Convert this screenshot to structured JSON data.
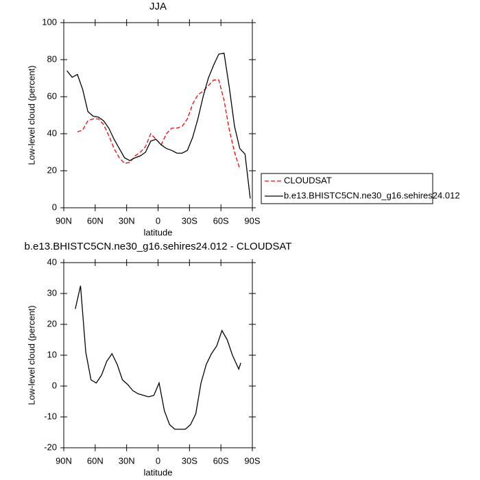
{
  "chart_data": [
    {
      "type": "line",
      "title": "JJA",
      "xlabel": "latitude",
      "ylabel": "Low-level cloud (percent)",
      "x": [
        87,
        82,
        77,
        72,
        67,
        62,
        57,
        52,
        47,
        42,
        37,
        32,
        27,
        22,
        17,
        12,
        7,
        2,
        -3,
        -8,
        -13,
        -18,
        -23,
        -28,
        -33,
        -38,
        -43,
        -48,
        -53,
        -58,
        -63,
        -68,
        -73,
        -78,
        -83,
        -88
      ],
      "series": [
        {
          "name": "CLOUDSAT",
          "color": "#ff0000",
          "dash": "dashed",
          "values": [
            null,
            null,
            41,
            42,
            47,
            48,
            48,
            45,
            39,
            32,
            27,
            24,
            24.5,
            28,
            30,
            33,
            40,
            37,
            34,
            40,
            43,
            43,
            44,
            48,
            56,
            61,
            63,
            66,
            69,
            69,
            58,
            42,
            30,
            21,
            null,
            null
          ]
        },
        {
          "name": "b.e13.BHISTC5CN.ne30_g16.sehires24.012",
          "color": "#000000",
          "dash": "solid",
          "values": [
            74,
            70.5,
            72,
            64,
            52,
            49.5,
            49,
            47,
            43,
            37,
            32,
            27,
            25.5,
            27,
            28,
            30,
            36,
            37,
            34,
            32,
            31,
            29.5,
            29.5,
            31,
            38,
            48,
            60,
            70,
            77,
            83,
            83.5,
            65,
            44,
            32,
            29,
            5
          ]
        }
      ],
      "xlim": [
        90,
        -90
      ],
      "xticks": [
        {
          "value": 90,
          "label": "90N"
        },
        {
          "value": 60,
          "label": "60N"
        },
        {
          "value": 30,
          "label": "30N"
        },
        0,
        {
          "value": -30,
          "label": "30S"
        },
        {
          "value": -60,
          "label": "60S"
        },
        {
          "value": -90,
          "label": "90S"
        }
      ],
      "ylim": [
        0,
        100
      ],
      "yticks": [
        0,
        20,
        40,
        60,
        80,
        100
      ],
      "legend": "right"
    },
    {
      "type": "line",
      "title": "b.e13.BHISTC5CN.ne30_g16.sehires24.012 - CLOUDSAT",
      "xlabel": "latitude",
      "ylabel": "Low-level cloud (percent)",
      "x": [
        79,
        74,
        69,
        64,
        59,
        54,
        49,
        44,
        39,
        34,
        29,
        24,
        19,
        14,
        9,
        4,
        -1,
        -6,
        -11,
        -16,
        -21,
        -26,
        -31,
        -36,
        -41,
        -46,
        -51,
        -56,
        -61,
        -66,
        -71,
        -77,
        -79
      ],
      "series": [
        {
          "color": "#000000",
          "dash": "solid",
          "values": [
            25,
            32.5,
            11,
            2,
            1,
            3.5,
            8,
            10.5,
            7,
            2,
            0.5,
            -1.5,
            -2.5,
            -3,
            -3.5,
            -3,
            1,
            -8,
            -12.5,
            -14,
            -14,
            -14,
            -12.5,
            -9,
            1,
            7,
            10.5,
            13,
            18,
            15,
            10,
            5.5,
            7.5
          ]
        }
      ],
      "xlim": [
        90,
        -90
      ],
      "xticks": [
        {
          "value": 90,
          "label": "90N"
        },
        {
          "value": 60,
          "label": "60N"
        },
        {
          "value": 30,
          "label": "30N"
        },
        0,
        {
          "value": -30,
          "label": "30S"
        },
        {
          "value": -60,
          "label": "60S"
        },
        {
          "value": -90,
          "label": "90S"
        }
      ],
      "ylim": [
        -20,
        40
      ],
      "yticks": [
        -20,
        -10,
        0,
        10,
        20,
        30,
        40
      ]
    }
  ]
}
